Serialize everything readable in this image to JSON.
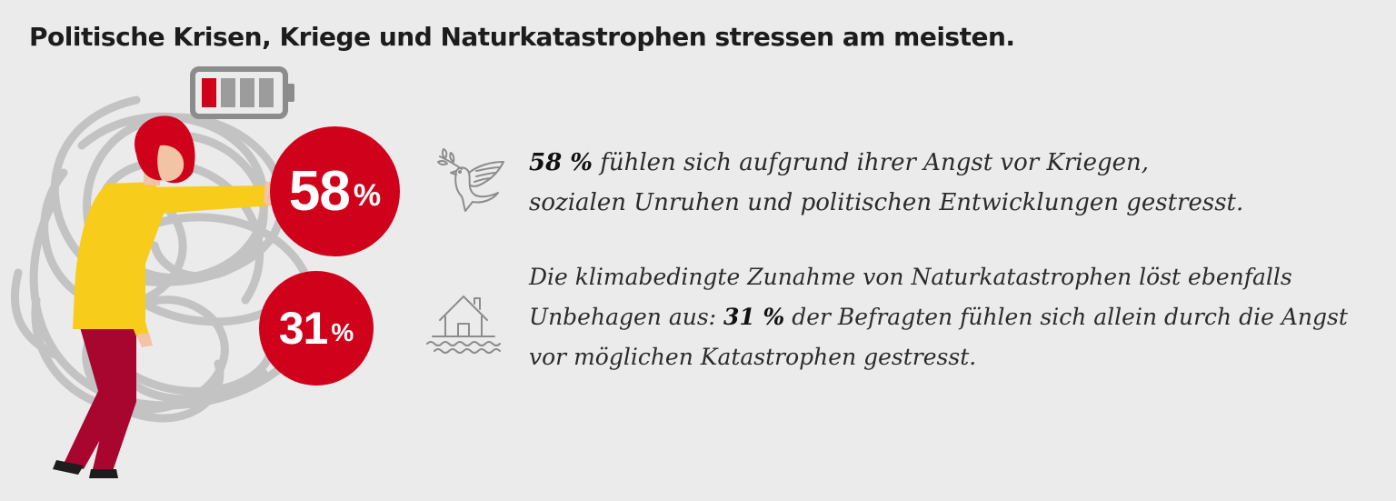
{
  "headline": "Politische Krisen, Kriege und Naturkatastrophen stressen am meisten.",
  "colors": {
    "accent_red": "#d0011b",
    "shirt_yellow": "#f7cc1b",
    "trousers_red": "#a8052f",
    "scribble_grey": "#c3c3c3",
    "background": "#ebebeb"
  },
  "battery_level": 0.25,
  "illustration_icons": [
    "battery-icon",
    "stressed-woman-figure",
    "tangled-scribble"
  ],
  "stats": [
    {
      "value": "58",
      "unit": "%",
      "icon": "dove-icon",
      "lines": [
        {
          "bold": "58 %",
          "text": " fühlen sich aufgrund ihrer Angst vor Kriegen,"
        },
        {
          "bold": "",
          "text": "sozialen Unruhen und politischen Entwicklungen gestresst."
        }
      ]
    },
    {
      "value": "31",
      "unit": "%",
      "icon": "flooded-house-icon",
      "lines": [
        {
          "before": "Die klimabedingte Zunahme von Naturkatastrophen löst ebenfalls",
          "bold": "",
          "after": ""
        },
        {
          "before": "Unbehagen aus: ",
          "bold": "31 %",
          "after": " der Befragten fühlen sich allein durch die Angst"
        },
        {
          "before": "vor möglichen Katastrophen gestresst.",
          "bold": "",
          "after": ""
        }
      ]
    }
  ]
}
